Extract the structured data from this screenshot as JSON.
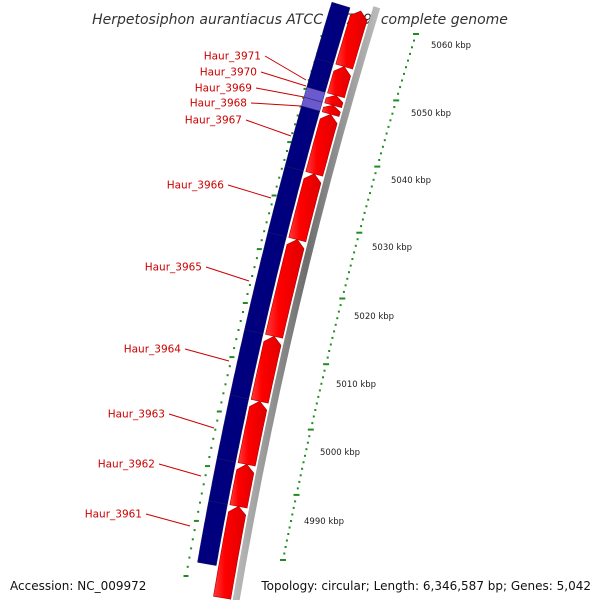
{
  "title": "Herpetosiphon aurantiacus ATCC 23779, complete genome",
  "accession_text": "Accession: NC_009972",
  "topology_text": "Topology: circular; Length: 6,346,587 bp; Genes: 5,042",
  "colors": {
    "forward_feature": "#ff0000",
    "reverse_feature": "#00007f",
    "highlight_feature": "#6a5acd",
    "backbone": "#808080",
    "ticks": "#228b22",
    "labels": "#cc0000"
  },
  "genes": [
    {
      "name": "Haur_3961"
    },
    {
      "name": "Haur_3962"
    },
    {
      "name": "Haur_3963"
    },
    {
      "name": "Haur_3964"
    },
    {
      "name": "Haur_3965"
    },
    {
      "name": "Haur_3966"
    },
    {
      "name": "Haur_3967"
    },
    {
      "name": "Haur_3968"
    },
    {
      "name": "Haur_3969"
    },
    {
      "name": "Haur_3970"
    },
    {
      "name": "Haur_3971"
    }
  ],
  "kbp_labels": [
    "4990 kbp",
    "5000 kbp",
    "5010 kbp",
    "5020 kbp",
    "5030 kbp",
    "5040 kbp",
    "5050 kbp",
    "5060 kbp"
  ]
}
